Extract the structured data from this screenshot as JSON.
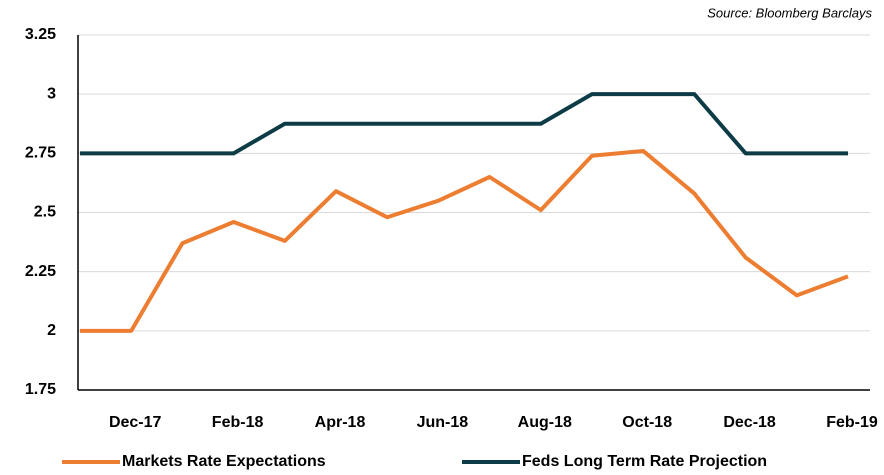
{
  "chart_data": {
    "type": "line",
    "source": "Source: Bloomberg Barclays",
    "categories": [
      null,
      "Dec-17",
      null,
      "Feb-18",
      null,
      "Apr-18",
      null,
      "Jun-18",
      null,
      "Aug-18",
      null,
      "Oct-18",
      null,
      "Dec-18",
      null,
      "Feb-19"
    ],
    "series": [
      {
        "name": "Markets Rate Expectations",
        "color": "#ed7d31",
        "values": [
          2.0,
          2.0,
          2.37,
          2.46,
          2.38,
          2.59,
          2.48,
          2.55,
          2.65,
          2.51,
          2.74,
          2.76,
          2.58,
          2.31,
          2.15,
          2.23
        ]
      },
      {
        "name": "Feds Long Term Rate Projection",
        "color": "#0d3c46",
        "values": [
          2.75,
          2.75,
          2.75,
          2.75,
          2.875,
          2.875,
          2.875,
          2.875,
          2.875,
          2.875,
          3.0,
          3.0,
          3.0,
          2.75,
          2.75,
          2.75
        ]
      }
    ],
    "ylim": [
      1.75,
      3.25
    ],
    "yticks": [
      1.75,
      2,
      2.25,
      2.5,
      2.75,
      3,
      3.25
    ],
    "grid": true
  }
}
